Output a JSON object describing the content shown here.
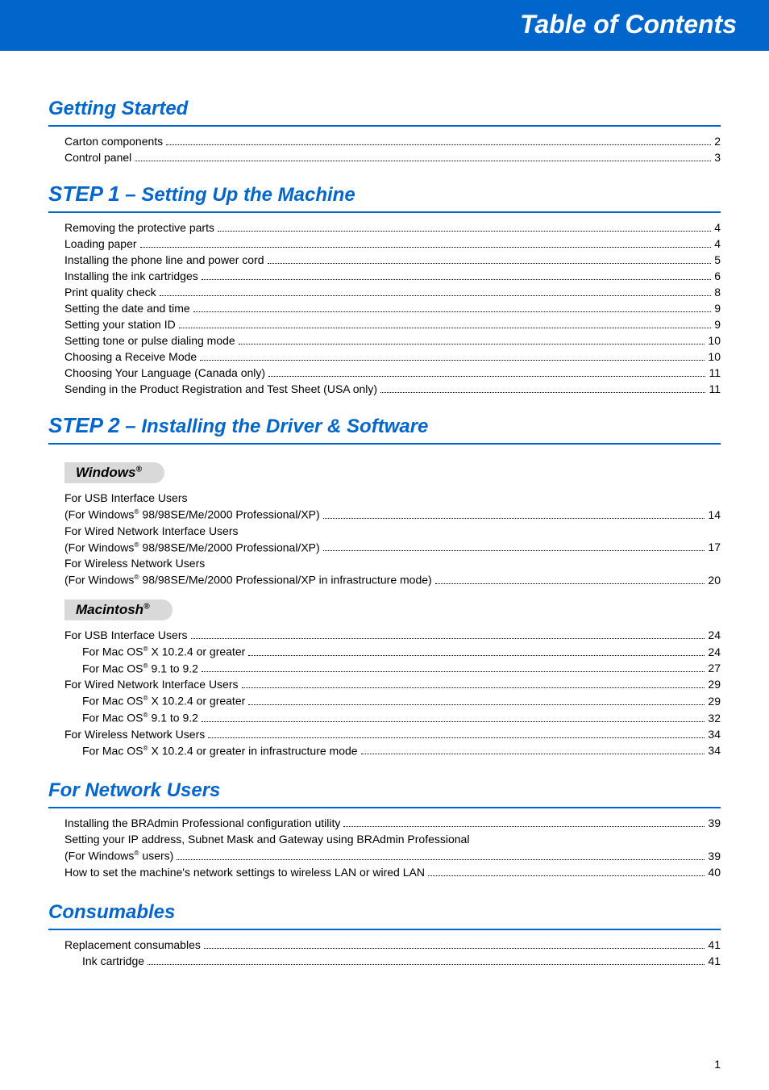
{
  "header": {
    "title": "Table of Contents"
  },
  "page_number": "1",
  "sections": {
    "getting_started": {
      "title": "Getting Started",
      "items": [
        {
          "label": "Carton components",
          "page": "2"
        },
        {
          "label": "Control panel",
          "page": "3"
        }
      ]
    },
    "step1": {
      "step": "STEP 1",
      "sep": " – ",
      "title": "Setting Up the Machine",
      "items": [
        {
          "label": "Removing the protective parts",
          "page": "4"
        },
        {
          "label": "Loading paper",
          "page": "4"
        },
        {
          "label": "Installing the phone line and power cord",
          "page": "5"
        },
        {
          "label": "Installing the ink cartridges",
          "page": "6"
        },
        {
          "label": "Print quality check",
          "page": "8"
        },
        {
          "label": "Setting the date and time",
          "page": "9"
        },
        {
          "label": "Setting your station ID",
          "page": "9"
        },
        {
          "label": "Setting tone or pulse dialing mode",
          "page": "10"
        },
        {
          "label": "Choosing a Receive Mode",
          "page": "10"
        },
        {
          "label": "Choosing Your Language (Canada only)",
          "page": "11"
        },
        {
          "label": "Sending in the Product Registration and Test Sheet (USA only)",
          "page": "11"
        }
      ]
    },
    "step2": {
      "step": "STEP 2",
      "sep": " – ",
      "title": "Installing the Driver & Software",
      "windows_tab": "Windows",
      "mac_tab": "Macintosh",
      "reg": "®",
      "windows_items": [
        {
          "l1": "For USB Interface Users",
          "l2a": "(For Windows",
          "l2b": " 98/98SE/Me/2000 Professional/XP)",
          "page": "14"
        },
        {
          "l1": "For Wired Network Interface Users",
          "l2a": "(For Windows",
          "l2b": " 98/98SE/Me/2000 Professional/XP)",
          "page": "17"
        },
        {
          "l1": "For Wireless Network Users",
          "l2a": "(For Windows",
          "l2b": " 98/98SE/Me/2000 Professional/XP in infrastructure mode)",
          "page": "20"
        }
      ],
      "mac_items": [
        {
          "label": "For USB Interface Users",
          "page": "24",
          "indent": 0
        },
        {
          "pre": "For Mac OS",
          "post": " X 10.2.4 or greater",
          "page": "24",
          "indent": 1
        },
        {
          "pre": "For Mac OS",
          "post": " 9.1 to 9.2",
          "page": "27",
          "indent": 1
        },
        {
          "label": "For Wired Network Interface Users",
          "page": "29",
          "indent": 0
        },
        {
          "pre": "For Mac OS",
          "post": " X 10.2.4 or greater",
          "page": "29",
          "indent": 1
        },
        {
          "pre": "For Mac OS",
          "post": " 9.1 to 9.2",
          "page": "32",
          "indent": 1
        },
        {
          "label": "For Wireless Network Users",
          "page": "34",
          "indent": 0
        },
        {
          "pre": "For Mac OS",
          "post": " X 10.2.4 or greater in infrastructure mode",
          "page": "34",
          "indent": 1
        }
      ]
    },
    "network": {
      "title": "For Network Users",
      "items": [
        {
          "label": "Installing the BRAdmin Professional configuration utility",
          "page": "39"
        },
        {
          "l1": "Setting your IP address, Subnet Mask and Gateway using BRAdmin Professional",
          "l2a": "(For Windows",
          "l2b": " users)",
          "page": "39"
        },
        {
          "label": "How to set the machine's network settings to wireless LAN or wired LAN",
          "page": "40"
        }
      ]
    },
    "consumables": {
      "title": "Consumables",
      "items": [
        {
          "label": "Replacement consumables",
          "page": "41",
          "indent": 0
        },
        {
          "label": "Ink cartridge",
          "page": "41",
          "indent": 1
        }
      ]
    }
  }
}
